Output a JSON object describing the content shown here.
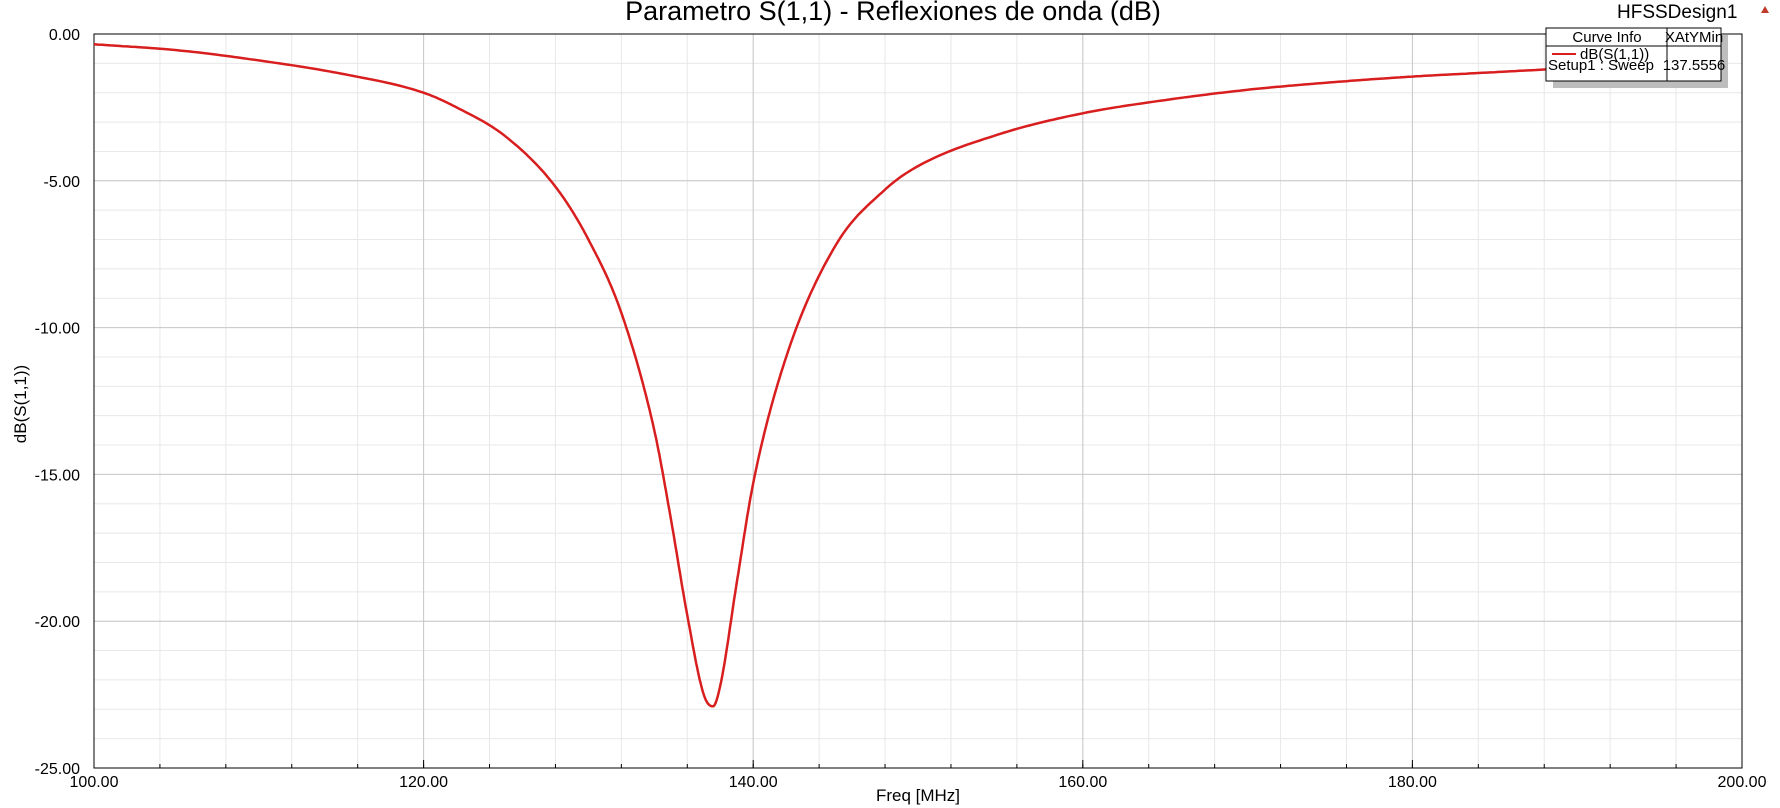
{
  "design_name": "HFSSDesign1",
  "colors": {
    "curve": "#d81e1e",
    "grid_major": "#c8c8c8",
    "grid_minor": "#e8e8e8",
    "background": "#ffffff",
    "marker_triangle": "#c0392b"
  },
  "legend": {
    "header_curve": "Curve Info",
    "header_col": "XAtYMin",
    "curve_name": "dB(S(1,1))",
    "curve_setup": "Setup1 : Sweep",
    "curve_value": "137.5556"
  },
  "chart_data": {
    "type": "line",
    "title": "Parametro S(1,1) - Reflexiones de onda (dB)",
    "xlabel": "Freq [MHz]",
    "ylabel": "dB(S(1,1))",
    "xlim": [
      100,
      200
    ],
    "ylim": [
      -25,
      0
    ],
    "x_ticks": [
      "100.00",
      "120.00",
      "140.00",
      "160.00",
      "180.00",
      "200.00"
    ],
    "y_ticks": [
      "0.00",
      "-5.00",
      "-10.00",
      "-15.00",
      "-20.00",
      "-25.00"
    ],
    "grid": true,
    "legend_position": "top-right",
    "series": [
      {
        "name": "dB(S(1,1))",
        "x": [
          100,
          105,
          110,
          115,
          120,
          122,
          125,
          128,
          130,
          132,
          134,
          135,
          136,
          137,
          137.5556,
          138,
          139,
          140,
          142,
          145,
          148,
          150,
          155,
          160,
          165,
          170,
          175,
          180,
          185,
          190
        ],
        "y": [
          -0.35,
          -0.55,
          -0.9,
          -1.35,
          -2.0,
          -2.5,
          -3.5,
          -5.2,
          -7.0,
          -9.5,
          -13.5,
          -16.5,
          -19.8,
          -22.5,
          -22.9,
          -22.2,
          -18.7,
          -15.3,
          -11.0,
          -7.2,
          -5.3,
          -4.5,
          -3.4,
          -2.7,
          -2.25,
          -1.9,
          -1.65,
          -1.45,
          -1.3,
          -1.15
        ]
      }
    ]
  }
}
